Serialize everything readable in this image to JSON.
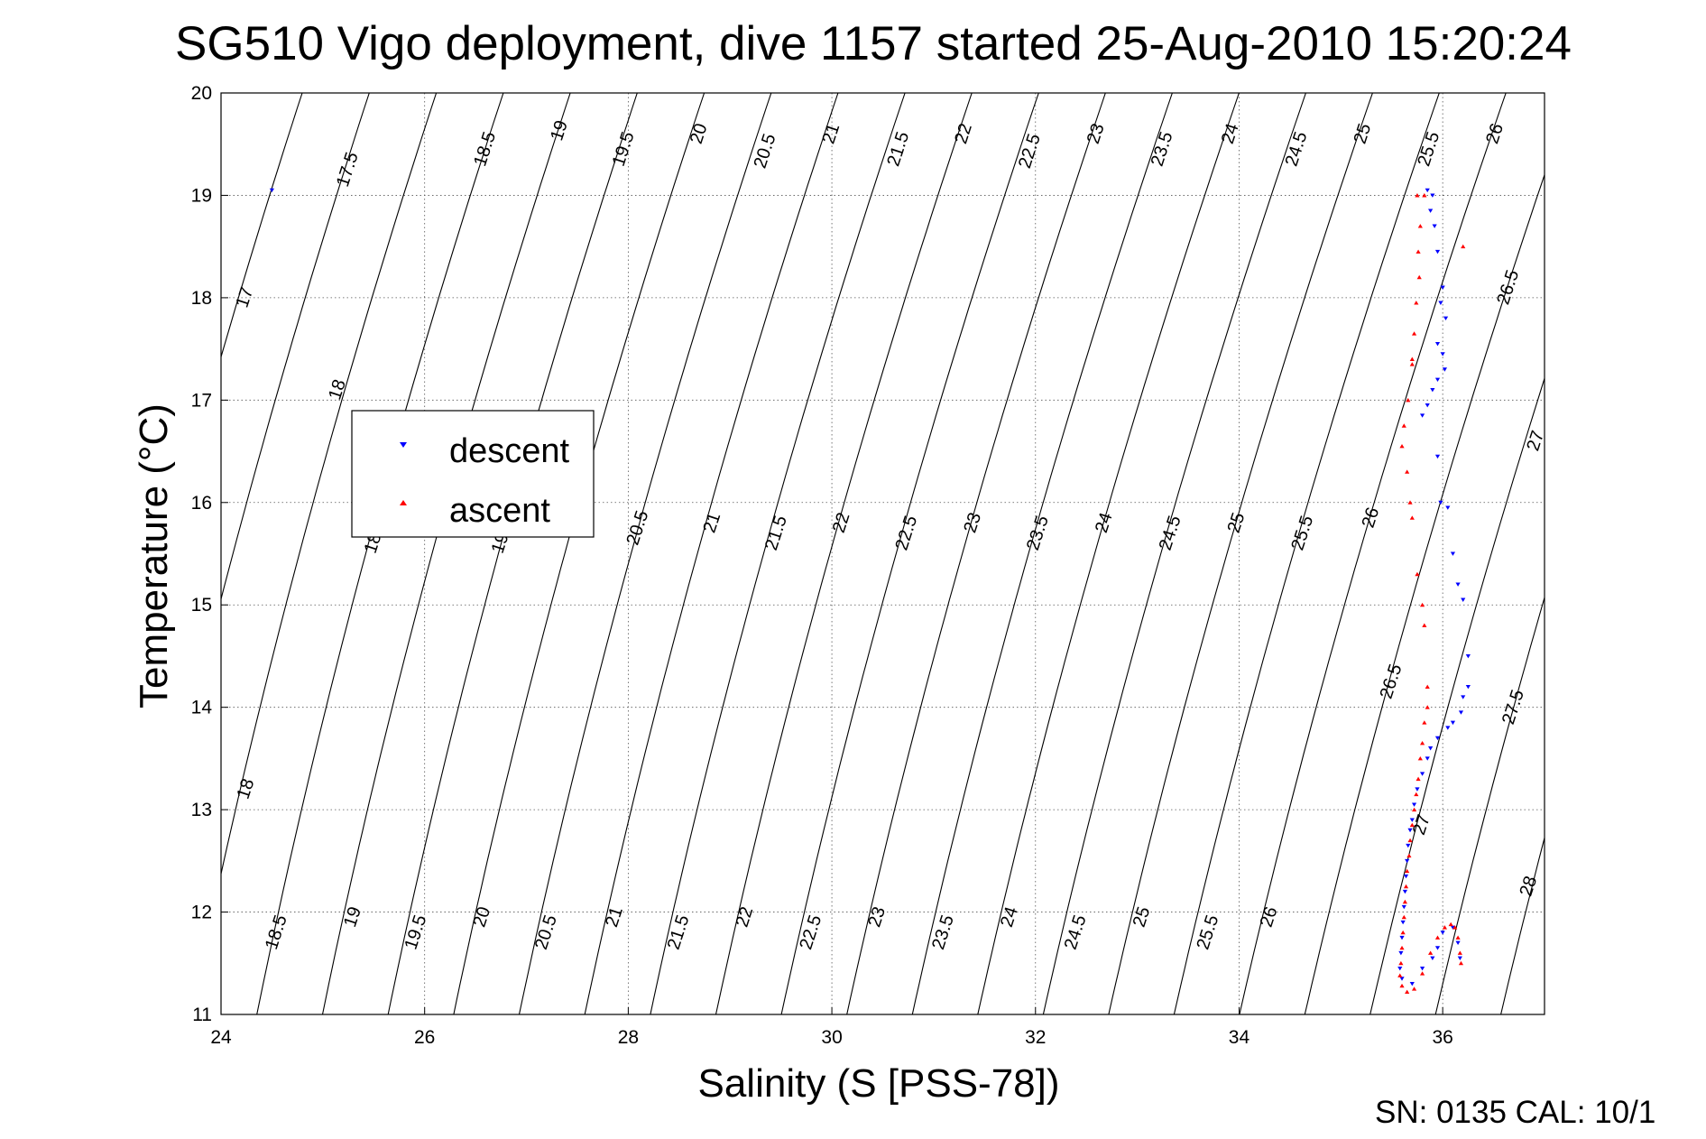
{
  "chart_data": {
    "type": "scatter",
    "title": "SG510 Vigo deployment, dive 1157 started 25-Aug-2010 15:20:24",
    "xlabel": "Salinity (S [PSS-78])",
    "ylabel": "Temperature (°C)",
    "xlim": [
      24,
      37
    ],
    "ylim": [
      11,
      20
    ],
    "xticks": [
      24,
      26,
      28,
      30,
      32,
      34,
      36
    ],
    "yticks": [
      11,
      12,
      13,
      14,
      15,
      16,
      17,
      18,
      19,
      20
    ],
    "grid": true,
    "grid_style": "dotted",
    "legend_position": "left",
    "footer": "SN: 0135  CAL: 10/1",
    "density_contours": {
      "levels": [
        17,
        17.5,
        18,
        18.5,
        19,
        19.5,
        20,
        20.5,
        21,
        21.5,
        22,
        22.5,
        23,
        23.5,
        24,
        24.5,
        25,
        25.5,
        26,
        26.5,
        27,
        27.5,
        28
      ],
      "labels": [
        {
          "text": "17.5",
          "x": 25.25,
          "y": 19.25
        },
        {
          "text": "18.5",
          "x": 26.6,
          "y": 19.45
        },
        {
          "text": "19",
          "x": 27.33,
          "y": 19.63
        },
        {
          "text": "19.5",
          "x": 27.96,
          "y": 19.45
        },
        {
          "text": "20",
          "x": 28.7,
          "y": 19.6
        },
        {
          "text": "20.5",
          "x": 29.35,
          "y": 19.43
        },
        {
          "text": "21",
          "x": 30.0,
          "y": 19.6
        },
        {
          "text": "21.5",
          "x": 30.66,
          "y": 19.45
        },
        {
          "text": "22",
          "x": 31.3,
          "y": 19.6
        },
        {
          "text": "22.5",
          "x": 31.95,
          "y": 19.43
        },
        {
          "text": "23",
          "x": 32.6,
          "y": 19.6
        },
        {
          "text": "23.5",
          "x": 33.25,
          "y": 19.45
        },
        {
          "text": "24",
          "x": 33.92,
          "y": 19.6
        },
        {
          "text": "24.5",
          "x": 34.57,
          "y": 19.45
        },
        {
          "text": "25",
          "x": 35.22,
          "y": 19.6
        },
        {
          "text": "25.5",
          "x": 35.87,
          "y": 19.45
        },
        {
          "text": "26",
          "x": 36.52,
          "y": 19.6
        },
        {
          "text": "17",
          "x": 24.24,
          "y": 18.0
        },
        {
          "text": "26.5",
          "x": 36.65,
          "y": 18.1
        },
        {
          "text": "18",
          "x": 25.15,
          "y": 17.1
        },
        {
          "text": "27",
          "x": 36.92,
          "y": 16.6
        },
        {
          "text": "18",
          "x": 25.5,
          "y": 15.6
        },
        {
          "text": "19",
          "x": 26.75,
          "y": 15.6
        },
        {
          "text": "20.5",
          "x": 28.1,
          "y": 15.75
        },
        {
          "text": "21",
          "x": 28.83,
          "y": 15.8
        },
        {
          "text": "21.5",
          "x": 29.46,
          "y": 15.7
        },
        {
          "text": "22",
          "x": 30.1,
          "y": 15.8
        },
        {
          "text": "22.5",
          "x": 30.74,
          "y": 15.7
        },
        {
          "text": "23",
          "x": 31.39,
          "y": 15.8
        },
        {
          "text": "23.5",
          "x": 32.03,
          "y": 15.7
        },
        {
          "text": "24",
          "x": 32.68,
          "y": 15.8
        },
        {
          "text": "24.5",
          "x": 33.33,
          "y": 15.7
        },
        {
          "text": "25",
          "x": 33.98,
          "y": 15.8
        },
        {
          "text": "25.5",
          "x": 34.63,
          "y": 15.7
        },
        {
          "text": "26",
          "x": 35.3,
          "y": 15.85
        },
        {
          "text": "26.5",
          "x": 35.5,
          "y": 14.25
        },
        {
          "text": "27.5",
          "x": 36.7,
          "y": 14.0
        },
        {
          "text": "18",
          "x": 24.25,
          "y": 13.2
        },
        {
          "text": "27",
          "x": 35.8,
          "y": 12.85
        },
        {
          "text": "28",
          "x": 36.85,
          "y": 12.25
        },
        {
          "text": "18.5",
          "x": 24.55,
          "y": 11.8
        },
        {
          "text": "19",
          "x": 25.3,
          "y": 11.95
        },
        {
          "text": "19.5",
          "x": 25.92,
          "y": 11.8
        },
        {
          "text": "20",
          "x": 26.57,
          "y": 11.95
        },
        {
          "text": "20.5",
          "x": 27.2,
          "y": 11.8
        },
        {
          "text": "21",
          "x": 27.87,
          "y": 11.95
        },
        {
          "text": "21.5",
          "x": 28.5,
          "y": 11.8
        },
        {
          "text": "22",
          "x": 29.15,
          "y": 11.95
        },
        {
          "text": "22.5",
          "x": 29.8,
          "y": 11.8
        },
        {
          "text": "23",
          "x": 30.45,
          "y": 11.95
        },
        {
          "text": "23.5",
          "x": 31.1,
          "y": 11.8
        },
        {
          "text": "24",
          "x": 31.75,
          "y": 11.95
        },
        {
          "text": "24.5",
          "x": 32.4,
          "y": 11.8
        },
        {
          "text": "25",
          "x": 33.05,
          "y": 11.95
        },
        {
          "text": "25.5",
          "x": 33.7,
          "y": 11.8
        },
        {
          "text": "26",
          "x": 34.3,
          "y": 11.95
        }
      ]
    },
    "series": [
      {
        "name": "descent",
        "color": "#0000ff",
        "marker": "triangle-down",
        "points": [
          [
            24.5,
            19.05
          ],
          [
            35.85,
            19.05
          ],
          [
            35.9,
            19.0
          ],
          [
            35.88,
            18.85
          ],
          [
            35.92,
            18.7
          ],
          [
            35.95,
            18.45
          ],
          [
            36.0,
            18.1
          ],
          [
            35.98,
            17.95
          ],
          [
            36.03,
            17.8
          ],
          [
            35.95,
            17.55
          ],
          [
            36.0,
            17.45
          ],
          [
            36.02,
            17.3
          ],
          [
            35.95,
            17.2
          ],
          [
            35.9,
            17.1
          ],
          [
            35.85,
            16.95
          ],
          [
            35.8,
            16.85
          ],
          [
            35.95,
            16.45
          ],
          [
            35.98,
            16.0
          ],
          [
            36.05,
            15.95
          ],
          [
            36.1,
            15.5
          ],
          [
            36.15,
            15.2
          ],
          [
            36.2,
            15.05
          ],
          [
            36.25,
            14.5
          ],
          [
            36.25,
            14.2
          ],
          [
            36.2,
            14.1
          ],
          [
            36.18,
            13.95
          ],
          [
            36.1,
            13.85
          ],
          [
            36.05,
            13.8
          ],
          [
            35.95,
            13.7
          ],
          [
            35.88,
            13.6
          ],
          [
            35.85,
            13.5
          ],
          [
            35.8,
            13.35
          ],
          [
            35.75,
            13.2
          ],
          [
            35.72,
            13.05
          ],
          [
            35.7,
            12.9
          ],
          [
            35.68,
            12.8
          ],
          [
            35.66,
            12.65
          ],
          [
            35.65,
            12.5
          ],
          [
            35.64,
            12.35
          ],
          [
            35.63,
            12.2
          ],
          [
            35.62,
            12.05
          ],
          [
            35.61,
            11.9
          ],
          [
            35.6,
            11.75
          ],
          [
            35.59,
            11.6
          ],
          [
            35.58,
            11.45
          ],
          [
            35.6,
            11.35
          ],
          [
            35.7,
            11.3
          ],
          [
            35.8,
            11.45
          ],
          [
            35.9,
            11.55
          ],
          [
            35.95,
            11.65
          ],
          [
            36.0,
            11.8
          ],
          [
            36.1,
            11.85
          ],
          [
            36.15,
            11.7
          ],
          [
            36.17,
            11.55
          ]
        ]
      },
      {
        "name": "ascent",
        "color": "#ff0000",
        "marker": "triangle-up",
        "points": [
          [
            35.75,
            19.0
          ],
          [
            35.82,
            19.0
          ],
          [
            35.78,
            18.7
          ],
          [
            35.76,
            18.45
          ],
          [
            35.77,
            18.2
          ],
          [
            35.74,
            17.95
          ],
          [
            35.72,
            17.65
          ],
          [
            35.7,
            17.35
          ],
          [
            35.66,
            17.0
          ],
          [
            35.62,
            16.75
          ],
          [
            35.6,
            16.55
          ],
          [
            35.65,
            16.3
          ],
          [
            35.68,
            16.0
          ],
          [
            35.7,
            15.85
          ],
          [
            35.75,
            15.3
          ],
          [
            35.8,
            15.0
          ],
          [
            35.82,
            14.8
          ],
          [
            35.85,
            14.2
          ],
          [
            35.85,
            14.0
          ],
          [
            35.82,
            13.85
          ],
          [
            35.8,
            13.65
          ],
          [
            35.78,
            13.5
          ],
          [
            35.76,
            13.3
          ],
          [
            35.74,
            13.15
          ],
          [
            35.72,
            13.0
          ],
          [
            35.7,
            12.85
          ],
          [
            35.68,
            12.7
          ],
          [
            35.67,
            12.55
          ],
          [
            35.65,
            12.4
          ],
          [
            35.64,
            12.25
          ],
          [
            35.63,
            12.1
          ],
          [
            35.62,
            11.95
          ],
          [
            35.61,
            11.8
          ],
          [
            35.6,
            11.65
          ],
          [
            35.59,
            11.5
          ],
          [
            35.58,
            11.38
          ],
          [
            35.6,
            11.28
          ],
          [
            35.65,
            11.22
          ],
          [
            35.72,
            11.25
          ],
          [
            35.8,
            11.4
          ],
          [
            35.88,
            11.6
          ],
          [
            35.95,
            11.75
          ],
          [
            36.02,
            11.85
          ],
          [
            36.08,
            11.88
          ],
          [
            36.12,
            11.85
          ],
          [
            36.15,
            11.75
          ],
          [
            36.17,
            11.6
          ],
          [
            36.18,
            11.5
          ],
          [
            36.2,
            18.5
          ],
          [
            35.7,
            17.4
          ]
        ]
      }
    ]
  }
}
